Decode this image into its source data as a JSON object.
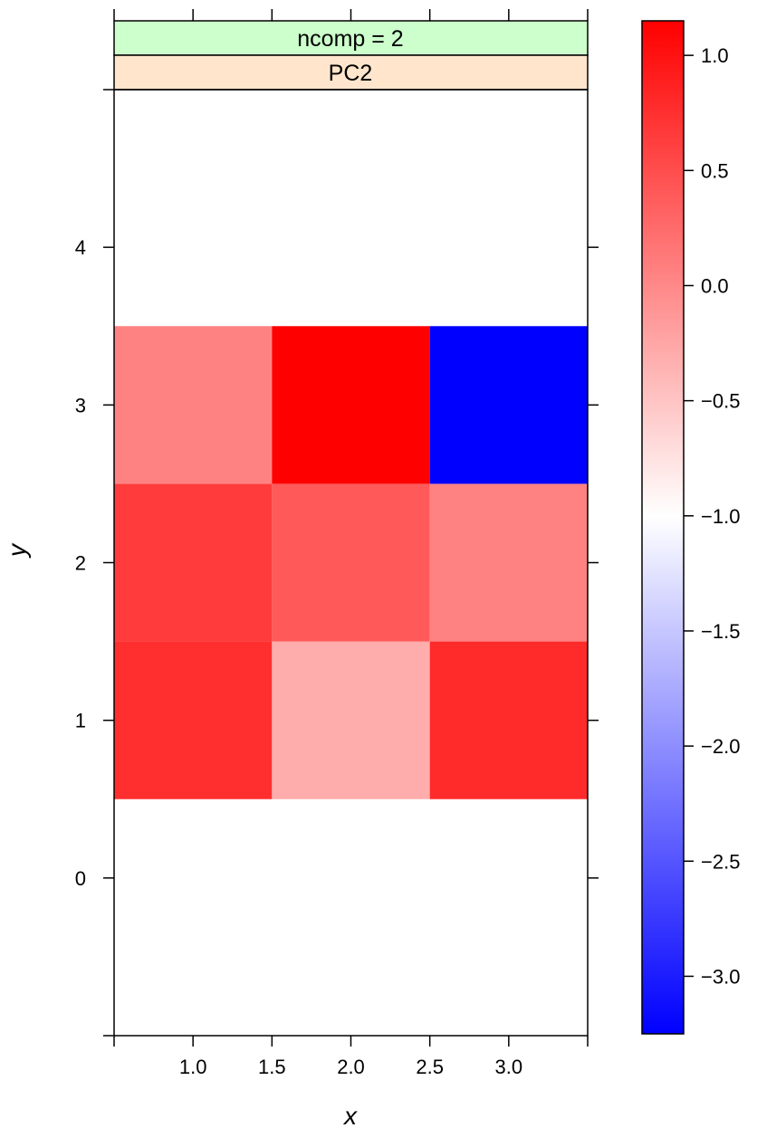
{
  "chart_data": {
    "type": "heatmap",
    "strip_labels": [
      "ncomp = 2",
      "PC2"
    ],
    "strip_colors": [
      "#ccffcc",
      "#ffe5cc"
    ],
    "xlabel": "x",
    "ylabel": "y",
    "x_ticks": [
      1.0,
      1.5,
      2.0,
      2.5,
      3.0
    ],
    "x_tick_labels": [
      "1.0",
      "1.5",
      "2.0",
      "2.5",
      "3.0"
    ],
    "y_ticks": [
      0,
      1,
      2,
      3,
      4
    ],
    "y_tick_labels": [
      "0",
      "1",
      "2",
      "3",
      "4"
    ],
    "xlim": [
      0.5,
      3.5
    ],
    "ylim": [
      -1.0,
      5.0
    ],
    "cells": [
      {
        "x": 1,
        "y": 1,
        "value": 0.75
      },
      {
        "x": 2,
        "y": 1,
        "value": -0.3
      },
      {
        "x": 3,
        "y": 1,
        "value": 0.8
      },
      {
        "x": 1,
        "y": 2,
        "value": 0.65
      },
      {
        "x": 2,
        "y": 2,
        "value": 0.4
      },
      {
        "x": 3,
        "y": 2,
        "value": 0.05
      },
      {
        "x": 1,
        "y": 3,
        "value": 0.05
      },
      {
        "x": 2,
        "y": 3,
        "value": 1.15
      },
      {
        "x": 3,
        "y": 3,
        "value": -3.25
      }
    ],
    "colorbar": {
      "range": [
        -3.25,
        1.15
      ],
      "ticks": [
        1.0,
        0.5,
        0.0,
        -0.5,
        -1.0,
        -1.5,
        -2.0,
        -2.5,
        -3.0
      ],
      "tick_labels": [
        "1.0",
        "0.5",
        "0.0",
        "−0.5",
        "−1.0",
        "−1.5",
        "−2.0",
        "−2.5",
        "−3.0"
      ],
      "low_color": "#0000ff",
      "mid_color": "#ffffff",
      "high_color": "#ff0000",
      "position": "right"
    }
  }
}
